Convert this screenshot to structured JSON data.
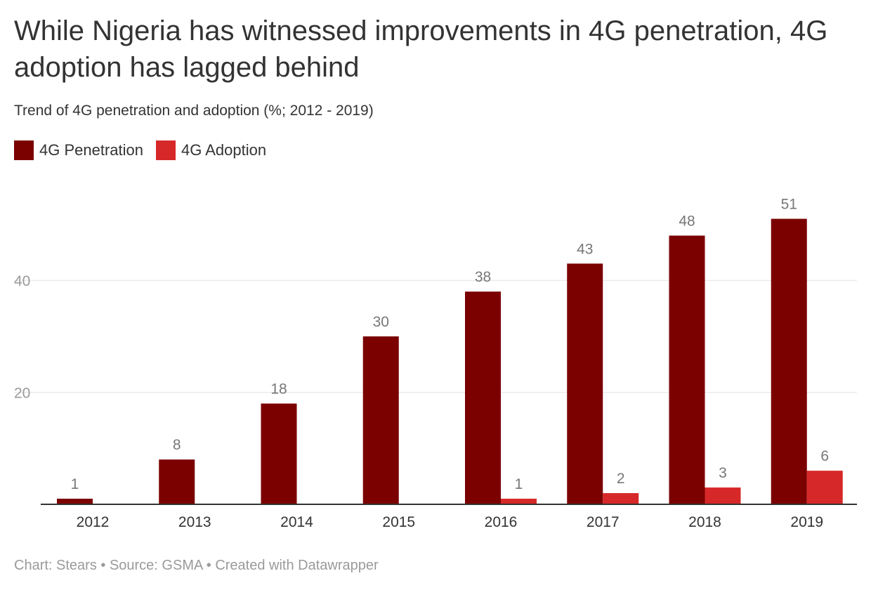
{
  "header": {
    "title": "While Nigeria has witnessed improvements in 4G penetration, 4G adoption has lagged behind",
    "subtitle": "Trend of 4G penetration and adoption (%; 2012 - 2019)"
  },
  "legend": {
    "items": [
      {
        "label": "4G Penetration",
        "color": "#7b0000"
      },
      {
        "label": "4G Adoption",
        "color": "#d62828"
      }
    ]
  },
  "footer": {
    "credit": "Chart: Stears • Source: GSMA • Created with Datawrapper"
  },
  "chart_data": {
    "type": "bar",
    "title": "While Nigeria has witnessed improvements in 4G penetration, 4G adoption has lagged behind",
    "subtitle": "Trend of 4G penetration and adoption (%; 2012 - 2019)",
    "categories": [
      "2012",
      "2013",
      "2014",
      "2015",
      "2016",
      "2017",
      "2018",
      "2019"
    ],
    "series": [
      {
        "name": "4G Penetration",
        "color": "#7b0000",
        "values": [
          1,
          8,
          18,
          30,
          38,
          43,
          48,
          51
        ]
      },
      {
        "name": "4G Adoption",
        "color": "#d62828",
        "values": [
          null,
          null,
          null,
          null,
          1,
          2,
          3,
          6
        ]
      }
    ],
    "yticks": [
      20,
      40
    ],
    "ylim": [
      0,
      51
    ],
    "grid": true,
    "legend_position": "top-left"
  }
}
